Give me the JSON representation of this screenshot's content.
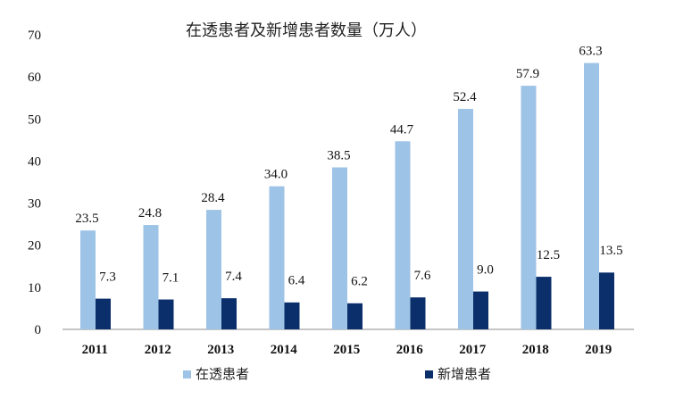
{
  "chart_data": {
    "type": "bar",
    "title": "在透患者及新增患者数量（万人）",
    "categories": [
      "2011",
      "2012",
      "2013",
      "2014",
      "2015",
      "2016",
      "2017",
      "2018",
      "2019"
    ],
    "series": [
      {
        "name": "在透患者",
        "color": "#9DC3E6",
        "values": [
          23.5,
          24.8,
          28.4,
          34.0,
          38.5,
          44.7,
          52.4,
          57.9,
          63.3
        ],
        "labels": [
          "23.5",
          "24.8",
          "28.4",
          "34.0",
          "38.5",
          "44.7",
          "52.4",
          "57.9",
          "63.3"
        ]
      },
      {
        "name": "新增患者",
        "color": "#0B2F6B",
        "values": [
          7.3,
          7.1,
          7.4,
          6.4,
          6.2,
          7.6,
          9.0,
          12.5,
          13.5
        ],
        "labels": [
          "7.3",
          "7.1",
          "7.4",
          "6.4",
          "6.2",
          "7.6",
          "9.0",
          "12.5",
          "13.5"
        ]
      }
    ],
    "yticks": [
      "0",
      "10",
      "20",
      "30",
      "40",
      "50",
      "60",
      "70"
    ],
    "ylim": [
      0,
      70
    ],
    "grid": false,
    "legend_position": "bottom"
  }
}
